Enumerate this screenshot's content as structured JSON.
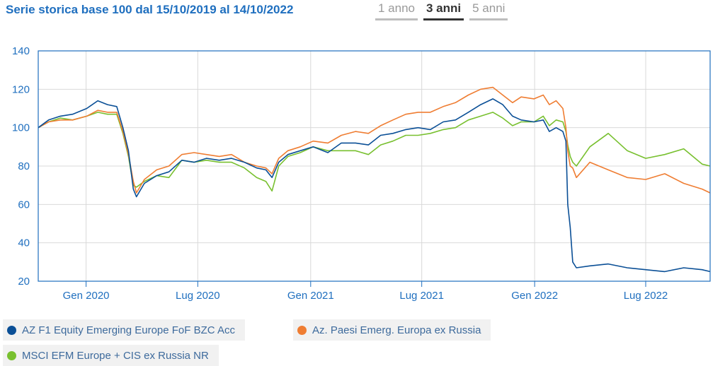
{
  "header": {
    "title": "Serie storica base 100 dal 15/10/2019 al 14/10/2022",
    "ranges": [
      "1 anno",
      "3 anni",
      "5 anni"
    ],
    "active_range": "3 anni"
  },
  "colors": {
    "series1": "#0a4f96",
    "series2": "#ef7d32",
    "series3": "#78c02f",
    "axis": "#1f6fbf",
    "grid": "#d9d9d9"
  },
  "legend": [
    {
      "label": "AZ F1 Equity Emerging Europe FoF BZC Acc",
      "color": "#0a4f96"
    },
    {
      "label": "Az. Paesi Emerg. Europa ex Russia",
      "color": "#ef7d32"
    },
    {
      "label": "MSCI EFM Europe + CIS ex Russia NR",
      "color": "#78c02f"
    }
  ],
  "chart_data": {
    "type": "line",
    "title": "Serie storica base 100 dal 15/10/2019 al 14/10/2022",
    "xlabel": "",
    "ylabel": "",
    "ylim": [
      20,
      140
    ],
    "yticks": [
      20,
      40,
      60,
      80,
      100,
      120,
      140
    ],
    "xlim": [
      "2019-10-15",
      "2022-10-14"
    ],
    "xticks": [
      {
        "date": "2020-01-01",
        "label": "Gen 2020"
      },
      {
        "date": "2020-07-01",
        "label": "Lug 2020"
      },
      {
        "date": "2021-01-01",
        "label": "Gen 2021"
      },
      {
        "date": "2021-07-01",
        "label": "Lug 2021"
      },
      {
        "date": "2022-01-01",
        "label": "Gen 2022"
      },
      {
        "date": "2022-07-01",
        "label": "Lug 2022"
      }
    ],
    "grid": true,
    "legend_position": "bottom",
    "series": [
      {
        "name": "AZ F1 Equity Emerging Europe FoF BZC Acc",
        "color": "#0a4f96",
        "points": [
          [
            "2019-10-15",
            100
          ],
          [
            "2019-11-01",
            104
          ],
          [
            "2019-11-20",
            106
          ],
          [
            "2019-12-10",
            107
          ],
          [
            "2020-01-02",
            110
          ],
          [
            "2020-01-20",
            114
          ],
          [
            "2020-02-05",
            112
          ],
          [
            "2020-02-20",
            111
          ],
          [
            "2020-03-01",
            100
          ],
          [
            "2020-03-10",
            88
          ],
          [
            "2020-03-18",
            68
          ],
          [
            "2020-03-23",
            64
          ],
          [
            "2020-04-05",
            71
          ],
          [
            "2020-04-25",
            75
          ],
          [
            "2020-05-15",
            77
          ],
          [
            "2020-06-05",
            83
          ],
          [
            "2020-06-25",
            82
          ],
          [
            "2020-07-15",
            84
          ],
          [
            "2020-08-05",
            83
          ],
          [
            "2020-08-25",
            84
          ],
          [
            "2020-09-15",
            82
          ],
          [
            "2020-10-05",
            79
          ],
          [
            "2020-10-20",
            78
          ],
          [
            "2020-10-30",
            74
          ],
          [
            "2020-11-10",
            82
          ],
          [
            "2020-11-25",
            86
          ],
          [
            "2020-12-15",
            88
          ],
          [
            "2021-01-05",
            90
          ],
          [
            "2021-01-29",
            87
          ],
          [
            "2021-02-20",
            92
          ],
          [
            "2021-03-15",
            92
          ],
          [
            "2021-04-05",
            91
          ],
          [
            "2021-04-25",
            96
          ],
          [
            "2021-05-15",
            97
          ],
          [
            "2021-06-05",
            99
          ],
          [
            "2021-06-25",
            100
          ],
          [
            "2021-07-15",
            99
          ],
          [
            "2021-08-05",
            103
          ],
          [
            "2021-08-25",
            104
          ],
          [
            "2021-09-15",
            108
          ],
          [
            "2021-10-05",
            112
          ],
          [
            "2021-10-25",
            115
          ],
          [
            "2021-11-10",
            112
          ],
          [
            "2021-11-26",
            106
          ],
          [
            "2021-12-10",
            104
          ],
          [
            "2021-12-31",
            103
          ],
          [
            "2022-01-15",
            104
          ],
          [
            "2022-01-25",
            98
          ],
          [
            "2022-02-05",
            100
          ],
          [
            "2022-02-16",
            98
          ],
          [
            "2022-02-21",
            93
          ],
          [
            "2022-02-24",
            60
          ],
          [
            "2022-02-28",
            48
          ],
          [
            "2022-03-04",
            30
          ],
          [
            "2022-03-10",
            27
          ],
          [
            "2022-04-01",
            28
          ],
          [
            "2022-05-01",
            29
          ],
          [
            "2022-06-01",
            27
          ],
          [
            "2022-07-01",
            26
          ],
          [
            "2022-08-01",
            25
          ],
          [
            "2022-09-01",
            27
          ],
          [
            "2022-10-01",
            26
          ],
          [
            "2022-10-14",
            25
          ]
        ]
      },
      {
        "name": "Az. Paesi Emerg. Europa ex Russia",
        "color": "#ef7d32",
        "points": [
          [
            "2019-10-15",
            100
          ],
          [
            "2019-11-01",
            103
          ],
          [
            "2019-11-20",
            104
          ],
          [
            "2019-12-10",
            104
          ],
          [
            "2020-01-02",
            106
          ],
          [
            "2020-01-20",
            109
          ],
          [
            "2020-02-05",
            108
          ],
          [
            "2020-02-20",
            108
          ],
          [
            "2020-03-01",
            98
          ],
          [
            "2020-03-10",
            86
          ],
          [
            "2020-03-18",
            72
          ],
          [
            "2020-03-23",
            66
          ],
          [
            "2020-04-05",
            73
          ],
          [
            "2020-04-25",
            78
          ],
          [
            "2020-05-15",
            80
          ],
          [
            "2020-06-05",
            86
          ],
          [
            "2020-06-25",
            87
          ],
          [
            "2020-07-15",
            86
          ],
          [
            "2020-08-05",
            85
          ],
          [
            "2020-08-25",
            86
          ],
          [
            "2020-09-15",
            82
          ],
          [
            "2020-10-05",
            80
          ],
          [
            "2020-10-20",
            79
          ],
          [
            "2020-10-30",
            76
          ],
          [
            "2020-11-10",
            84
          ],
          [
            "2020-11-25",
            88
          ],
          [
            "2020-12-15",
            90
          ],
          [
            "2021-01-05",
            93
          ],
          [
            "2021-01-29",
            92
          ],
          [
            "2021-02-20",
            96
          ],
          [
            "2021-03-15",
            98
          ],
          [
            "2021-04-05",
            97
          ],
          [
            "2021-04-25",
            101
          ],
          [
            "2021-05-15",
            104
          ],
          [
            "2021-06-05",
            107
          ],
          [
            "2021-06-25",
            108
          ],
          [
            "2021-07-15",
            108
          ],
          [
            "2021-08-05",
            111
          ],
          [
            "2021-08-25",
            113
          ],
          [
            "2021-09-15",
            117
          ],
          [
            "2021-10-05",
            120
          ],
          [
            "2021-10-25",
            121
          ],
          [
            "2021-11-10",
            117
          ],
          [
            "2021-11-26",
            113
          ],
          [
            "2021-12-10",
            116
          ],
          [
            "2021-12-31",
            115
          ],
          [
            "2022-01-15",
            117
          ],
          [
            "2022-01-25",
            112
          ],
          [
            "2022-02-05",
            114
          ],
          [
            "2022-02-16",
            110
          ],
          [
            "2022-02-21",
            100
          ],
          [
            "2022-02-24",
            88
          ],
          [
            "2022-02-28",
            80
          ],
          [
            "2022-03-04",
            79
          ],
          [
            "2022-03-10",
            74
          ],
          [
            "2022-04-01",
            82
          ],
          [
            "2022-05-01",
            78
          ],
          [
            "2022-06-01",
            74
          ],
          [
            "2022-07-01",
            73
          ],
          [
            "2022-08-01",
            76
          ],
          [
            "2022-09-01",
            71
          ],
          [
            "2022-10-01",
            68
          ],
          [
            "2022-10-14",
            66
          ]
        ]
      },
      {
        "name": "MSCI EFM Europe + CIS ex Russia NR",
        "color": "#78c02f",
        "points": [
          [
            "2019-10-15",
            100
          ],
          [
            "2019-11-01",
            103
          ],
          [
            "2019-11-20",
            105
          ],
          [
            "2019-12-10",
            104
          ],
          [
            "2020-01-02",
            106
          ],
          [
            "2020-01-20",
            108
          ],
          [
            "2020-02-05",
            107
          ],
          [
            "2020-02-20",
            107
          ],
          [
            "2020-03-01",
            97
          ],
          [
            "2020-03-10",
            85
          ],
          [
            "2020-03-18",
            70
          ],
          [
            "2020-03-23",
            69
          ],
          [
            "2020-04-05",
            72
          ],
          [
            "2020-04-25",
            75
          ],
          [
            "2020-05-15",
            74
          ],
          [
            "2020-06-05",
            83
          ],
          [
            "2020-06-25",
            82
          ],
          [
            "2020-07-15",
            83
          ],
          [
            "2020-08-05",
            82
          ],
          [
            "2020-08-25",
            82
          ],
          [
            "2020-09-15",
            79
          ],
          [
            "2020-10-05",
            74
          ],
          [
            "2020-10-20",
            72
          ],
          [
            "2020-10-30",
            67
          ],
          [
            "2020-11-10",
            80
          ],
          [
            "2020-11-25",
            85
          ],
          [
            "2020-12-15",
            87
          ],
          [
            "2021-01-05",
            90
          ],
          [
            "2021-01-29",
            88
          ],
          [
            "2021-02-20",
            88
          ],
          [
            "2021-03-15",
            88
          ],
          [
            "2021-04-05",
            86
          ],
          [
            "2021-04-25",
            91
          ],
          [
            "2021-05-15",
            93
          ],
          [
            "2021-06-05",
            96
          ],
          [
            "2021-06-25",
            96
          ],
          [
            "2021-07-15",
            97
          ],
          [
            "2021-08-05",
            99
          ],
          [
            "2021-08-25",
            100
          ],
          [
            "2021-09-15",
            104
          ],
          [
            "2021-10-05",
            106
          ],
          [
            "2021-10-25",
            108
          ],
          [
            "2021-11-10",
            105
          ],
          [
            "2021-11-26",
            101
          ],
          [
            "2021-12-10",
            103
          ],
          [
            "2021-12-31",
            103
          ],
          [
            "2022-01-15",
            106
          ],
          [
            "2022-01-25",
            101
          ],
          [
            "2022-02-05",
            104
          ],
          [
            "2022-02-16",
            103
          ],
          [
            "2022-02-21",
            98
          ],
          [
            "2022-02-24",
            91
          ],
          [
            "2022-02-28",
            85
          ],
          [
            "2022-03-04",
            82
          ],
          [
            "2022-03-10",
            80
          ],
          [
            "2022-04-01",
            90
          ],
          [
            "2022-05-01",
            97
          ],
          [
            "2022-06-01",
            88
          ],
          [
            "2022-07-01",
            84
          ],
          [
            "2022-08-01",
            86
          ],
          [
            "2022-09-01",
            89
          ],
          [
            "2022-10-01",
            81
          ],
          [
            "2022-10-14",
            80
          ]
        ]
      }
    ]
  }
}
